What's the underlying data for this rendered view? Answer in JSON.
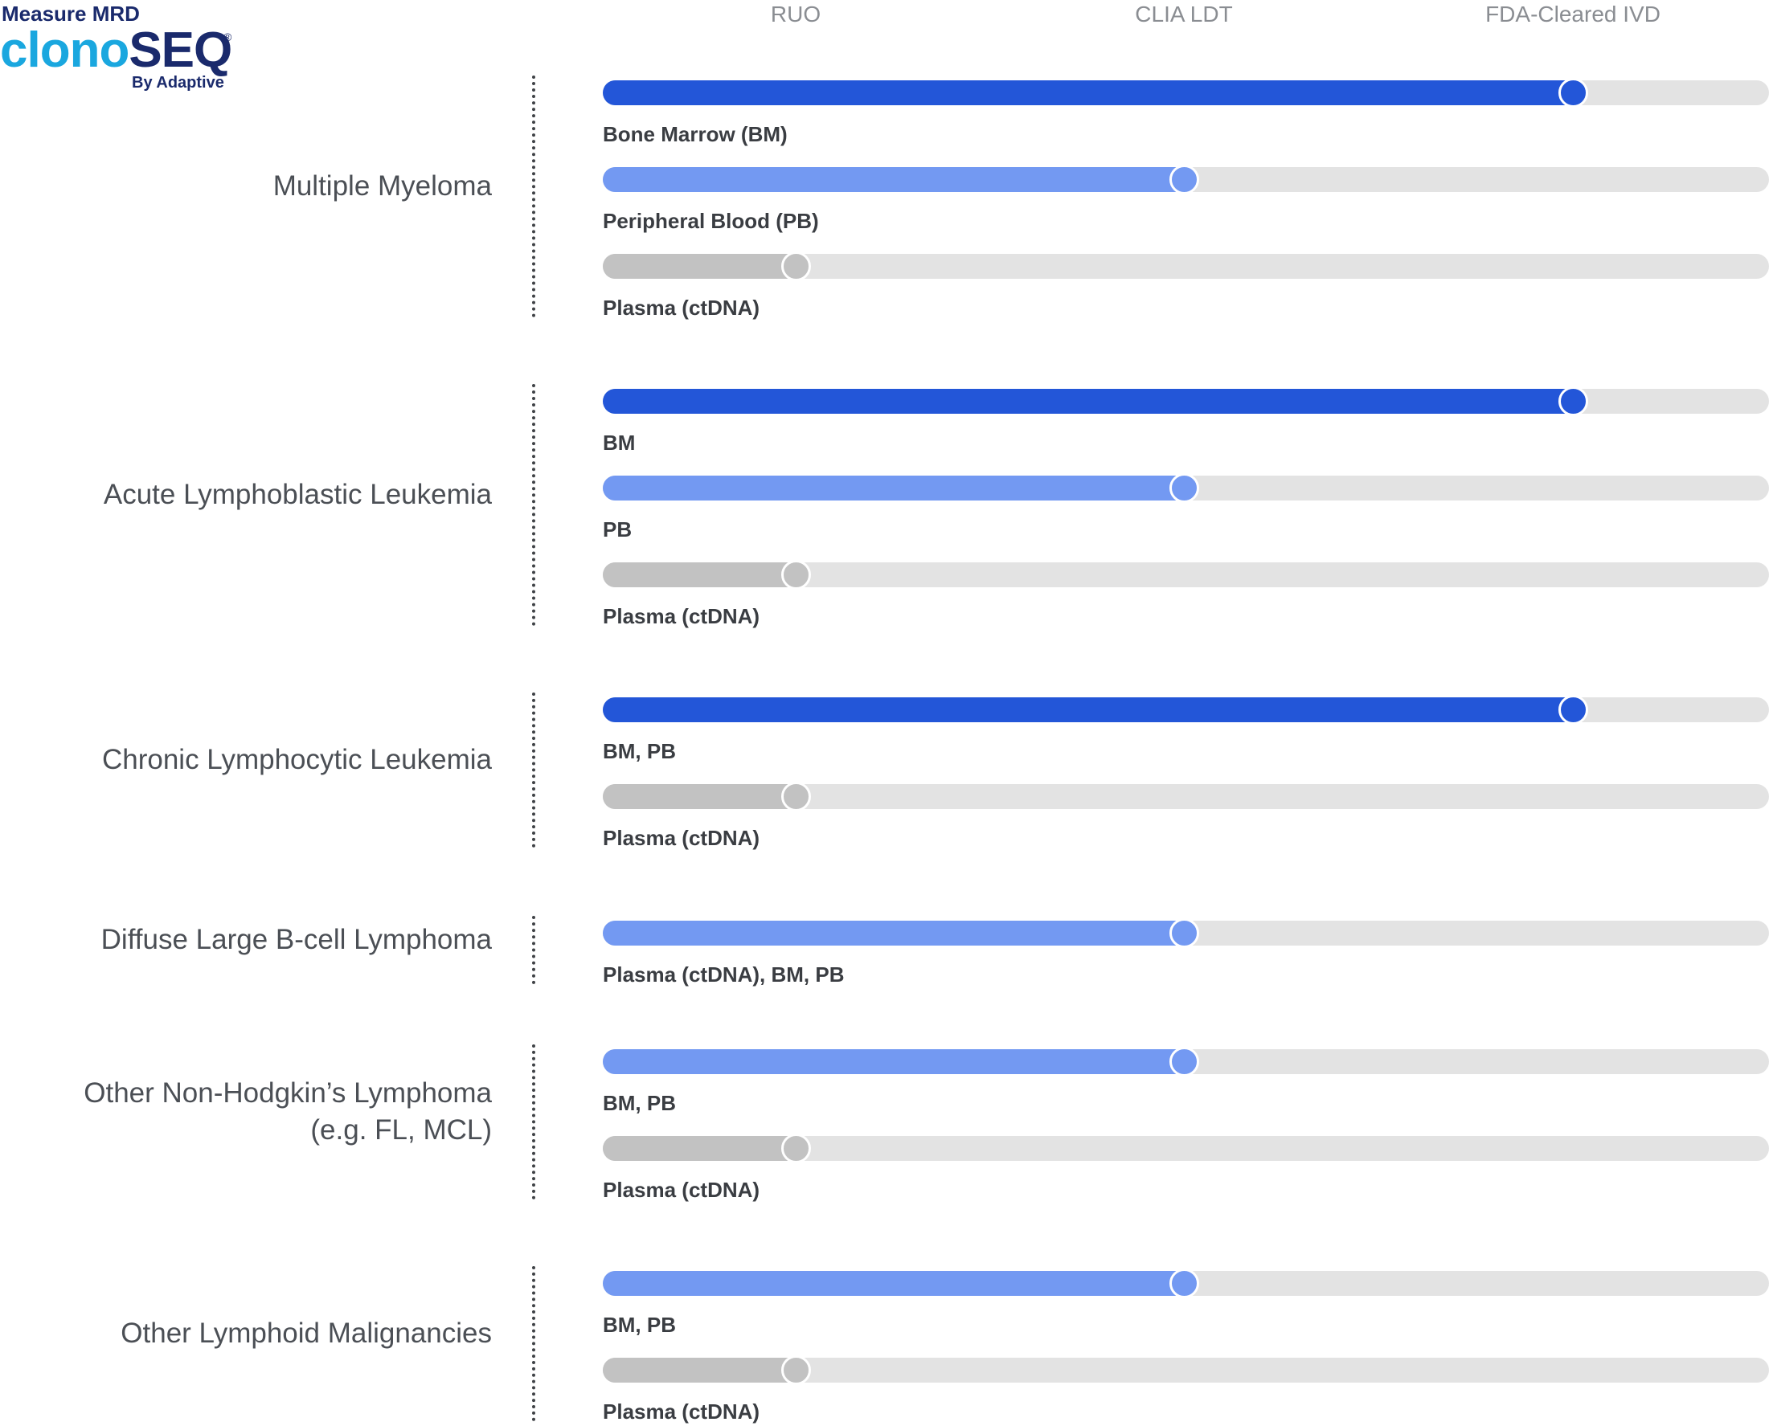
{
  "logo": {
    "eyebrow": "Measure MRD",
    "brand_part1": "clono",
    "brand_part2": "SEQ",
    "registered": "®",
    "byline": "By Adaptive"
  },
  "colors": {
    "ivd": "#2356d8",
    "ldt": "#7399f2",
    "ruo": "#c2c2c2",
    "track": "#e3e3e3"
  },
  "chart_data": {
    "type": "bar",
    "orientation": "horizontal",
    "levels": [
      "RUO",
      "CLIA LDT",
      "FDA-Cleared IVD"
    ],
    "groups": [
      {
        "name_lines": [
          "Multiple Myeloma"
        ],
        "bars": [
          {
            "label": "Bone Marrow (BM)",
            "level": "FDA-Cleared IVD"
          },
          {
            "label": "Peripheral Blood (PB)",
            "level": "CLIA LDT"
          },
          {
            "label": "Plasma (ctDNA)",
            "level": "RUO"
          }
        ]
      },
      {
        "name_lines": [
          "Acute Lymphoblastic Leukemia"
        ],
        "bars": [
          {
            "label": "BM",
            "level": "FDA-Cleared IVD"
          },
          {
            "label": "PB",
            "level": "CLIA LDT"
          },
          {
            "label": "Plasma (ctDNA)",
            "level": "RUO"
          }
        ]
      },
      {
        "name_lines": [
          "Chronic Lymphocytic Leukemia"
        ],
        "bars": [
          {
            "label": "BM, PB",
            "level": "FDA-Cleared IVD"
          },
          {
            "label": "Plasma (ctDNA)",
            "level": "RUO"
          }
        ]
      },
      {
        "name_lines": [
          "Diffuse Large B-cell Lymphoma"
        ],
        "bars": [
          {
            "label": "Plasma (ctDNA), BM, PB",
            "level": "CLIA LDT"
          }
        ]
      },
      {
        "name_lines": [
          "Other Non-Hodgkin’s Lymphoma",
          "(e.g. FL, MCL)"
        ],
        "bars": [
          {
            "label": "BM, PB",
            "level": "CLIA LDT"
          },
          {
            "label": "Plasma (ctDNA)",
            "level": "RUO"
          }
        ]
      },
      {
        "name_lines": [
          "Other Lymphoid Malignancies"
        ],
        "bars": [
          {
            "label": "BM, PB",
            "level": "CLIA LDT"
          },
          {
            "label": "Plasma (ctDNA)",
            "level": "RUO"
          }
        ]
      }
    ]
  }
}
